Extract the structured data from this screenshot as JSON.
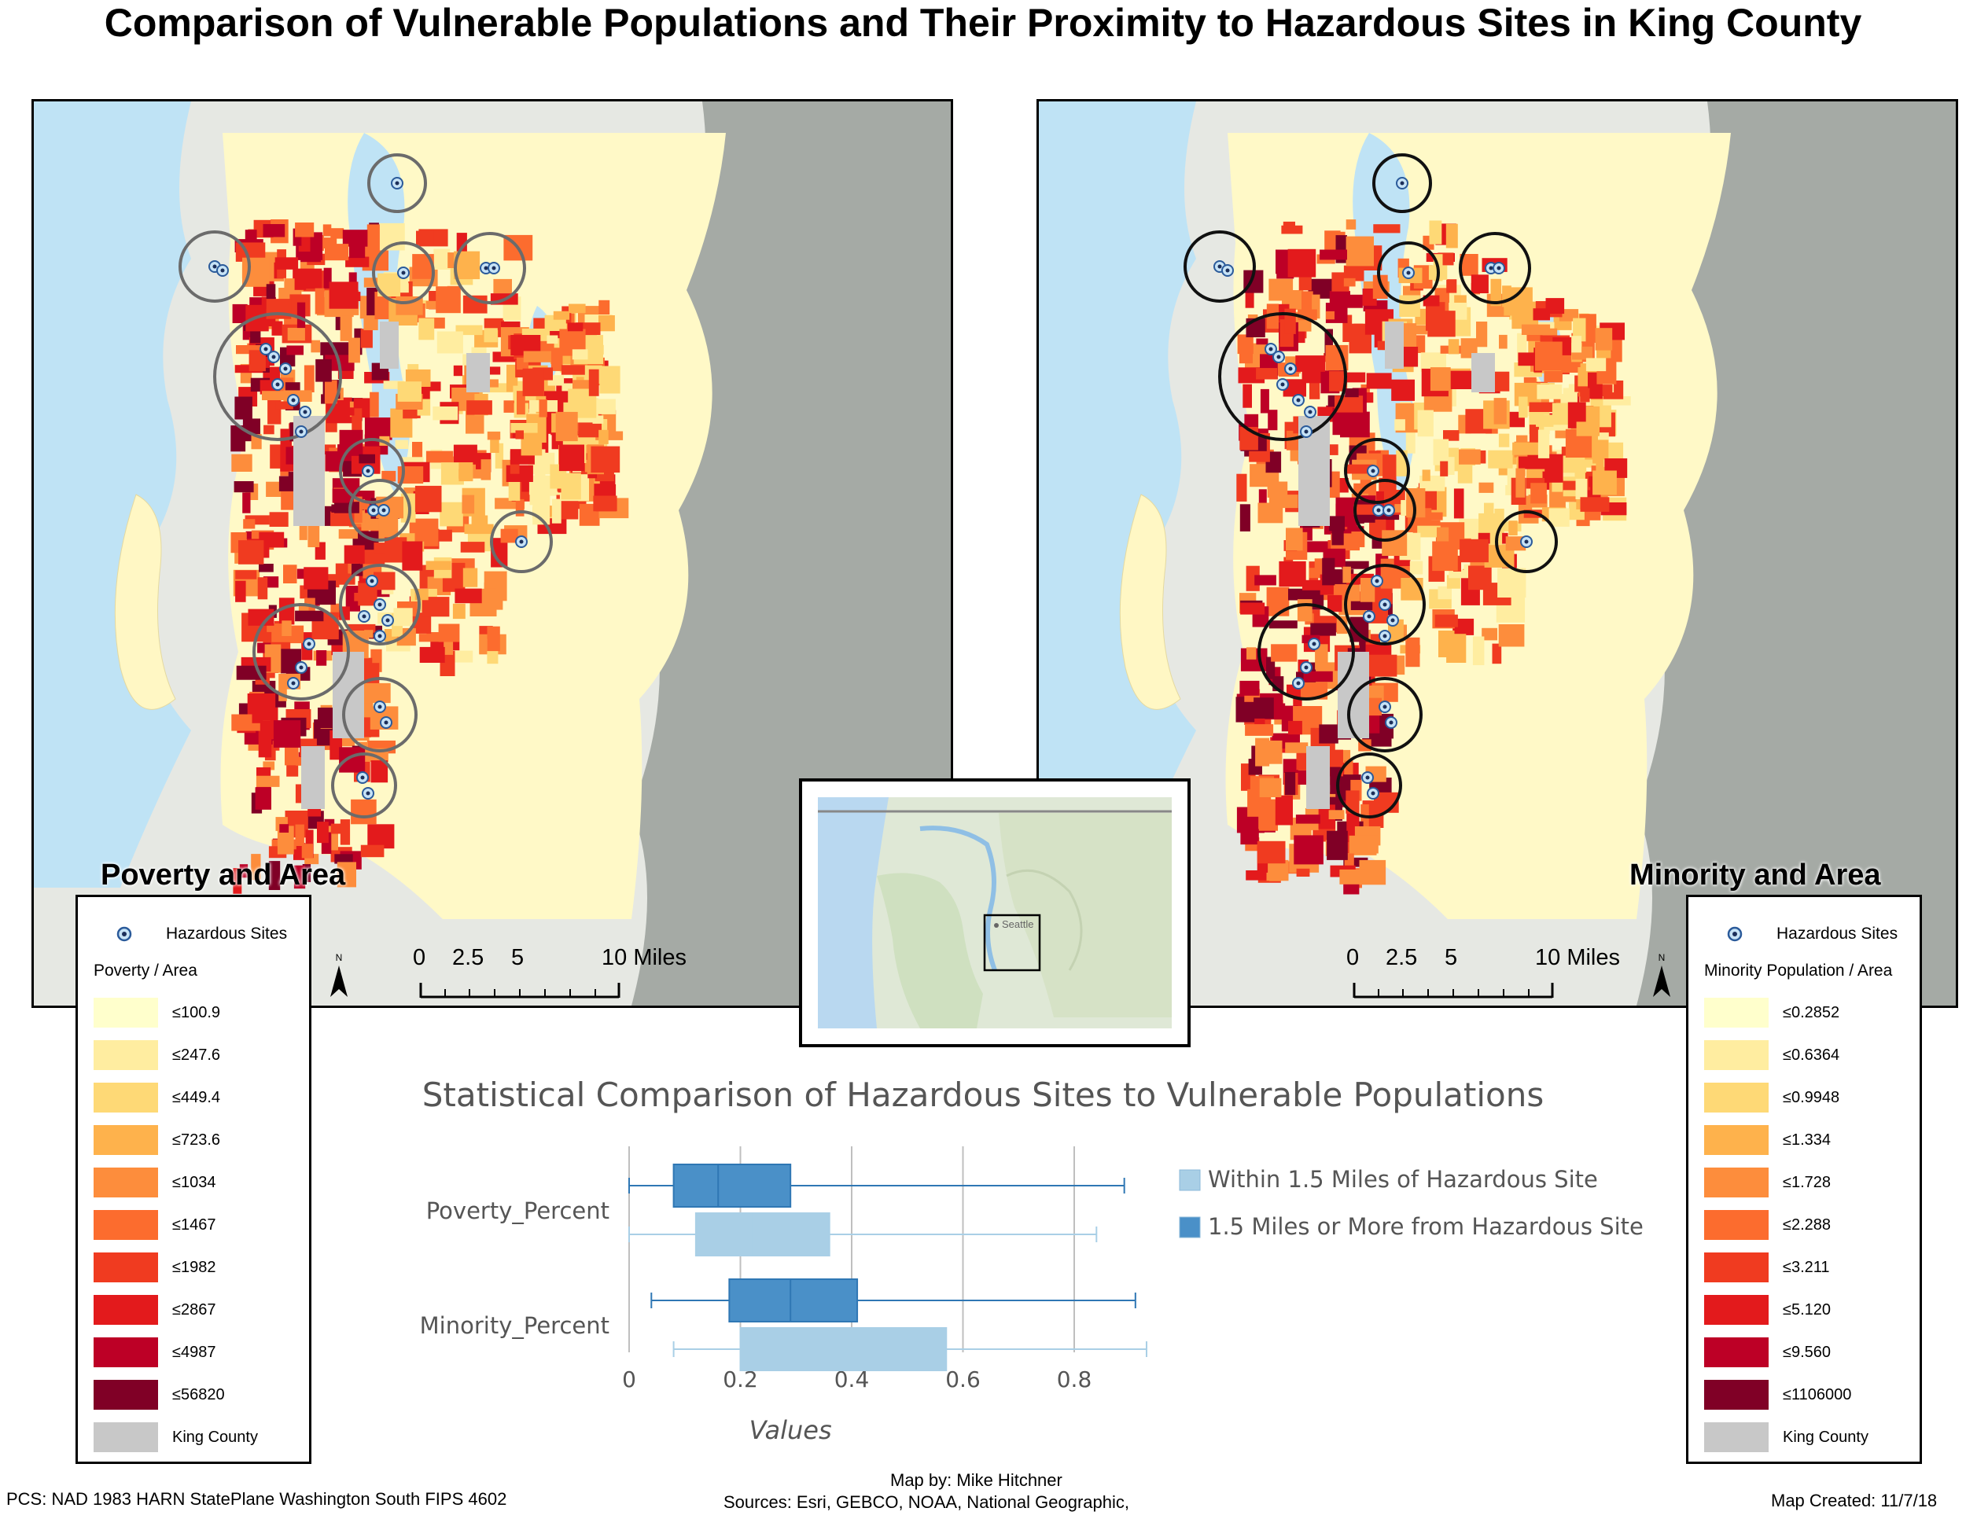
{
  "title": "Comparison of Vulnerable Populations and Their Proximity to Hazardous Sites in King County",
  "left_map": {
    "label": "Poverty and Area",
    "legend": {
      "sites_label": "Hazardous Sites",
      "field_label": "Poverty / Area",
      "classes": [
        {
          "label": "≤100.9",
          "color": "#ffffcc"
        },
        {
          "label": "≤247.6",
          "color": "#ffeda0"
        },
        {
          "label": "≤449.4",
          "color": "#fed976"
        },
        {
          "label": "≤723.6",
          "color": "#feb24c"
        },
        {
          "label": "≤1034",
          "color": "#fd8d3c"
        },
        {
          "label": "≤1467",
          "color": "#fc6c2e"
        },
        {
          "label": "≤1982",
          "color": "#f03b20"
        },
        {
          "label": "≤2867",
          "color": "#e31a1c"
        },
        {
          "label": "≤4987",
          "color": "#bd0026"
        },
        {
          "label": "≤56820",
          "color": "#800026"
        }
      ],
      "county_label": "King County",
      "county_color": "#c8c8c8"
    },
    "scale": {
      "ticks": [
        "0",
        "2.5",
        "5",
        "10 Miles"
      ]
    }
  },
  "right_map": {
    "label": "Minority and Area",
    "legend": {
      "sites_label": "Hazardous Sites",
      "field_label": "Minority Population / Area",
      "classes": [
        {
          "label": "≤0.2852",
          "color": "#ffffcc"
        },
        {
          "label": "≤0.6364",
          "color": "#ffeda0"
        },
        {
          "label": "≤0.9948",
          "color": "#fed976"
        },
        {
          "label": "≤1.334",
          "color": "#feb24c"
        },
        {
          "label": "≤1.728",
          "color": "#fd8d3c"
        },
        {
          "label": "≤2.288",
          "color": "#fc6c2e"
        },
        {
          "label": "≤3.211",
          "color": "#f03b20"
        },
        {
          "label": "≤5.120",
          "color": "#e31a1c"
        },
        {
          "label": "≤9.560",
          "color": "#bd0026"
        },
        {
          "label": "≤1106000",
          "color": "#800026"
        }
      ],
      "county_label": "King County",
      "county_color": "#c8c8c8"
    },
    "scale": {
      "ticks": [
        "0",
        "2.5",
        "5",
        "10 Miles"
      ]
    }
  },
  "north_arrow": "N",
  "inset": {
    "city_label": "Seattle"
  },
  "chart_data": {
    "type": "boxplot",
    "title": "Statistical Comparison of Hazardous Sites to Vulnerable Populations",
    "xlabel": "Values",
    "ylabel": "",
    "xlim": [
      0,
      0.95
    ],
    "xticks": [
      "0",
      "0.2",
      "0.4",
      "0.6",
      "0.8"
    ],
    "categories": [
      "Poverty_Percent",
      "Minority_Percent"
    ],
    "series": [
      {
        "name": "1.5 Miles or More from Hazardous Site",
        "color": "#4a90c8",
        "boxes": [
          {
            "min": 0.0,
            "q1": 0.08,
            "median": 0.16,
            "q3": 0.29,
            "max": 0.89
          },
          {
            "min": 0.04,
            "q1": 0.18,
            "median": 0.29,
            "q3": 0.41,
            "max": 0.91
          }
        ]
      },
      {
        "name": "Within 1.5 Miles of Hazardous Site",
        "color": "#a9cfe6",
        "boxes": [
          {
            "min": 0.0,
            "q1": 0.12,
            "median": 0.22,
            "q3": 0.36,
            "max": 0.84
          },
          {
            "min": 0.08,
            "q1": 0.2,
            "median": 0.35,
            "q3": 0.57,
            "max": 0.93
          }
        ]
      }
    ],
    "legend": [
      "Within 1.5 Miles of Hazardous Site",
      "1.5 Miles or More from Hazardous Site"
    ],
    "grid": true
  },
  "footer": {
    "pcs": "PCS: NAD 1983 HARN StatePlane Washington South FIPS 4602",
    "author": "Map by: Mike Hitchner",
    "sources": "Sources: Esri, GEBCO, NOAA, National Geographic,",
    "created": "Map Created: 11/7/18"
  }
}
